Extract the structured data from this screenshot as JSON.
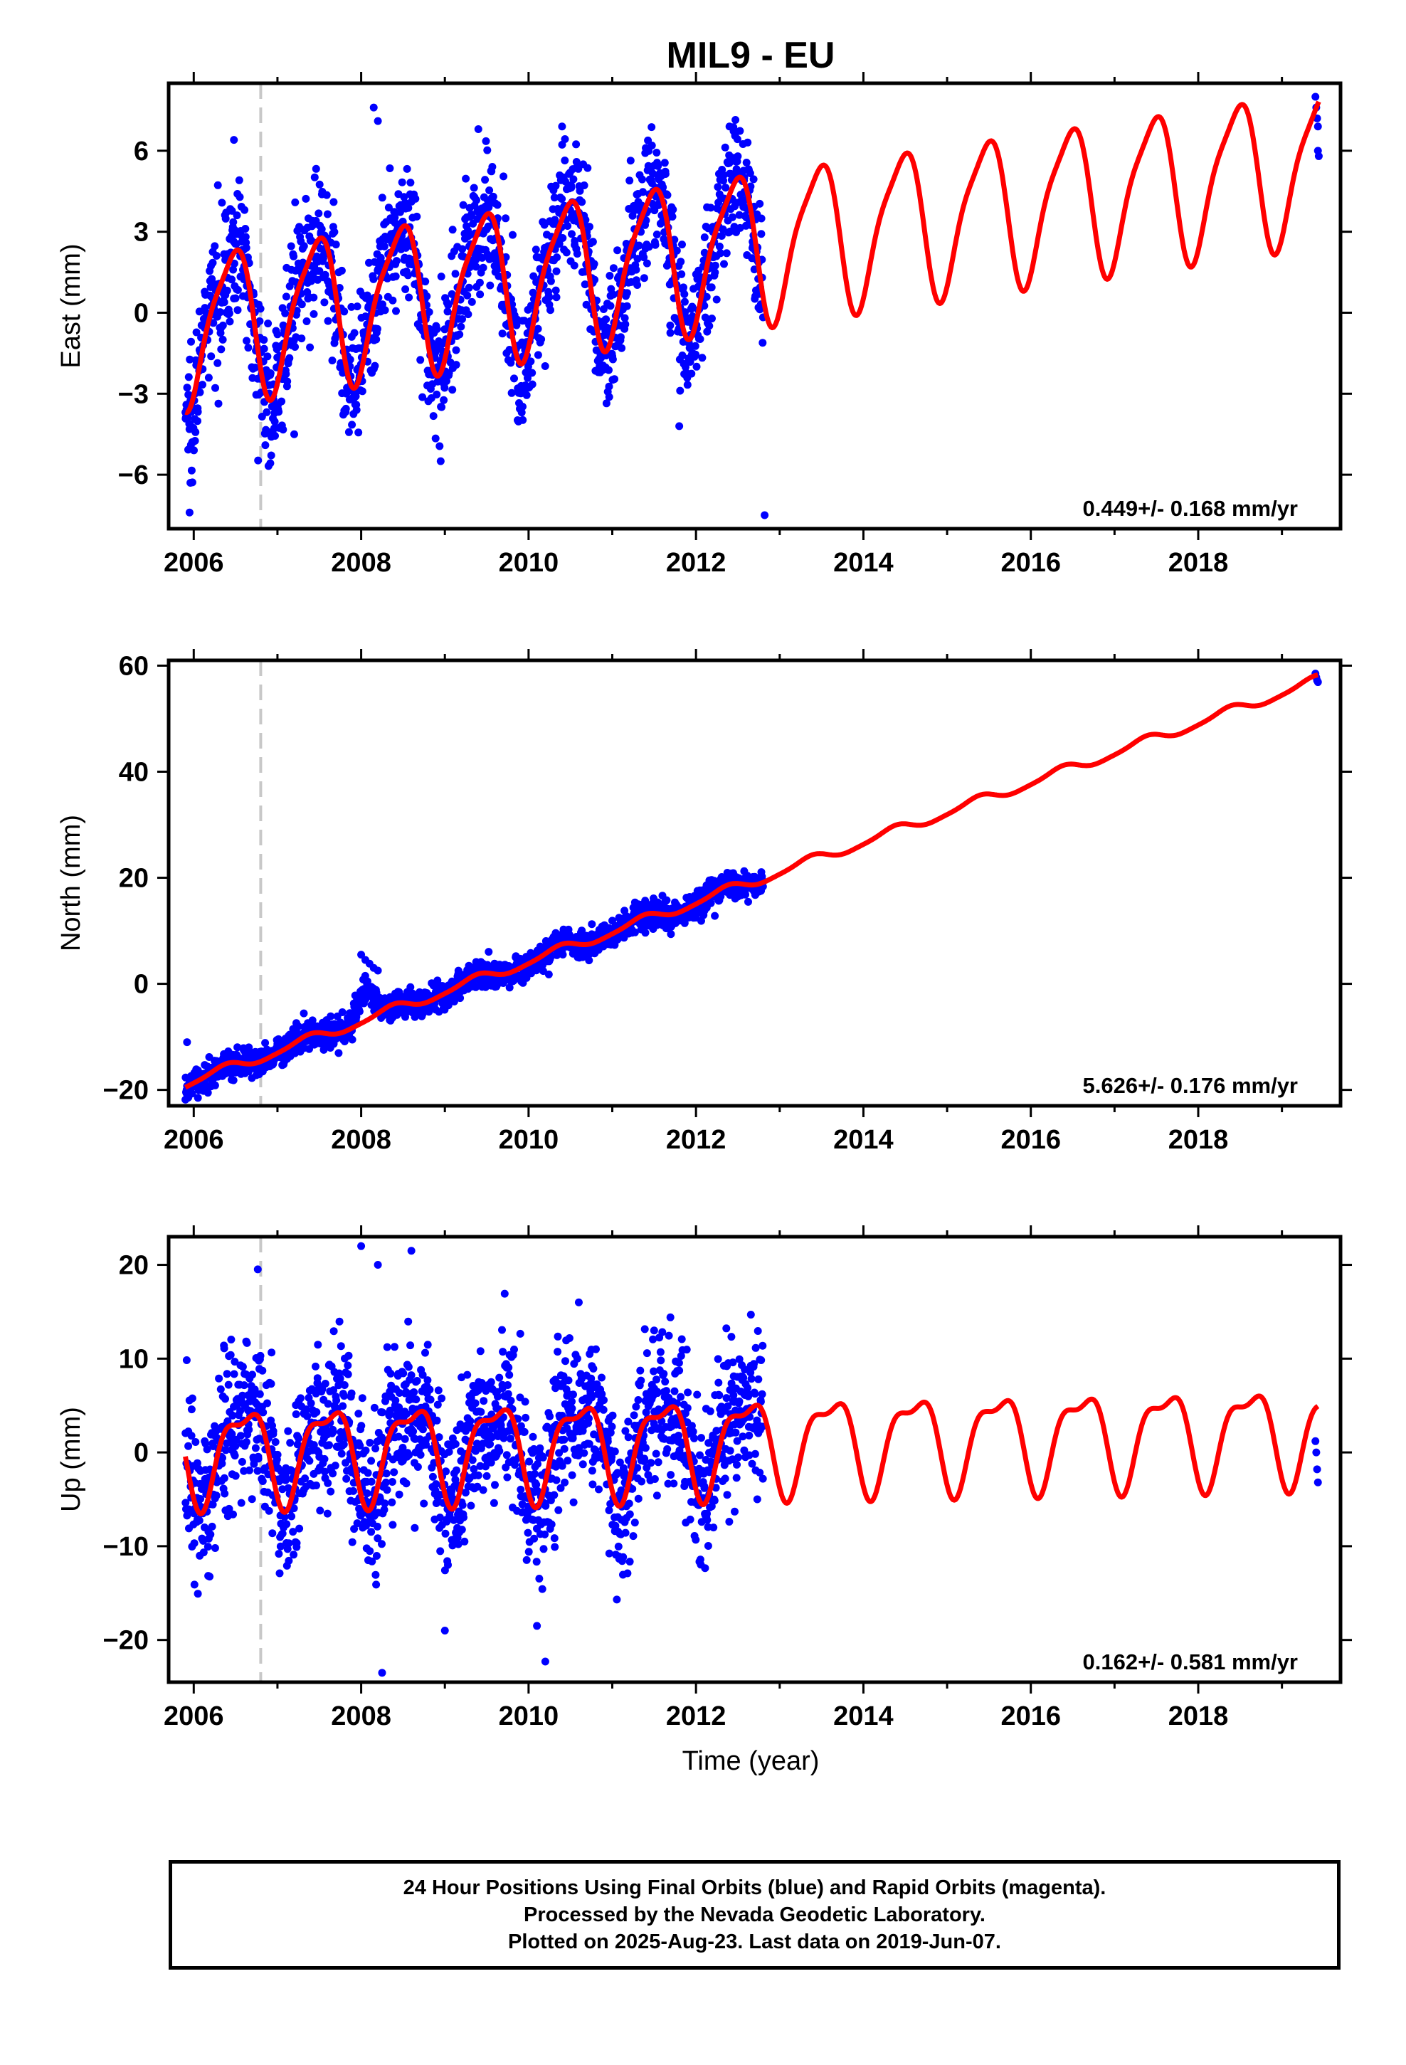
{
  "title": "MIL9 - EU",
  "xlabel": "Time (year)",
  "footer": {
    "line1": "24 Hour Positions Using Final Orbits (blue) and Rapid Orbits (magenta).",
    "line2": "Processed by the Nevada Geodetic Laboratory.",
    "line3": "Plotted on 2025-Aug-23. Last data on 2019-Jun-07."
  },
  "colors": {
    "data_points": "#0000ff",
    "model_line": "#ff0000",
    "event_line": "#c8c8c8",
    "frame": "#000000"
  },
  "chart_data": [
    {
      "type": "scatter",
      "component": "East",
      "ylabel": "East (mm)",
      "xlim": [
        2005.7,
        2019.7
      ],
      "ylim": [
        -8,
        8.5
      ],
      "xticks": [
        2006,
        2008,
        2010,
        2012,
        2014,
        2016,
        2018
      ],
      "yticks": [
        -6,
        -3,
        0,
        3,
        6
      ],
      "yticklabels": [
        "−6",
        "−3",
        "0",
        "3",
        "6"
      ],
      "event_line_x": 2006.8,
      "rate_label": "0.449+/- 0.168 mm/yr",
      "model": {
        "intercept": -0.5,
        "rate": 0.449,
        "ref_year": 2006.0,
        "amp_annual": 2.7,
        "phase_annual": 0.2,
        "amp_semi": 0.6,
        "phase_semi": 0.5
      },
      "data_span": [
        2005.9,
        2012.8
      ],
      "late_points": {
        "x": [
          2019.4,
          2019.41,
          2019.42,
          2019.43,
          2019.43,
          2019.44
        ],
        "y": [
          8.0,
          7.6,
          7.2,
          6.9,
          6.0,
          5.8
        ]
      },
      "noise_sd": 1.2,
      "outliers": {
        "x": [
          2005.95,
          2005.96,
          2006.48,
          2007.2,
          2008.15,
          2008.2,
          2008.95,
          2009.4,
          2010.4,
          2011.4,
          2011.8,
          2012.4,
          2012.82
        ],
        "y": [
          -7.4,
          -6.3,
          6.4,
          -4.5,
          7.6,
          7.1,
          -5.5,
          6.8,
          6.9,
          6.1,
          -4.2,
          6.9,
          -7.5
        ]
      }
    },
    {
      "type": "scatter",
      "component": "North",
      "ylabel": "North (mm)",
      "xlim": [
        2005.7,
        2019.7
      ],
      "ylim": [
        -23,
        61
      ],
      "xticks": [
        2006,
        2008,
        2010,
        2012,
        2014,
        2016,
        2018
      ],
      "yticks": [
        -20,
        0,
        20,
        40,
        60
      ],
      "yticklabels": [
        "−20",
        "0",
        "20",
        "40",
        "60"
      ],
      "event_line_x": 2006.8,
      "rate_label": "5.626+/- 0.176 mm/yr",
      "model": {
        "intercept": -18.3,
        "rate": 5.626,
        "ref_year": 2006.0,
        "amp_annual": 0.9,
        "phase_annual": 0.1,
        "amp_semi": 0.2,
        "phase_semi": 0.3
      },
      "data_span": [
        2005.9,
        2012.8
      ],
      "late_points": {
        "x": [
          2019.4,
          2019.41,
          2019.42,
          2019.43
        ],
        "y": [
          58.5,
          57.8,
          57.2,
          56.9
        ]
      },
      "noise_sd": 1.3,
      "outliers": {
        "x": [
          2005.92,
          2006.05,
          2008.0,
          2008.05,
          2008.1,
          2008.15,
          2008.2
        ],
        "y": [
          -11,
          -21.5,
          5.5,
          4.5,
          3.8,
          3.0,
          2.5
        ]
      }
    },
    {
      "type": "scatter",
      "component": "Up",
      "ylabel": "Up (mm)",
      "xlim": [
        2005.7,
        2019.7
      ],
      "ylim": [
        -24.5,
        23
      ],
      "xticks": [
        2006,
        2008,
        2010,
        2012,
        2014,
        2016,
        2018
      ],
      "yticks": [
        -20,
        -10,
        0,
        10,
        20
      ],
      "yticklabels": [
        "−20",
        "−10",
        "0",
        "10",
        "20"
      ],
      "event_line_x": 2006.8,
      "rate_label": "0.162+/- 0.581 mm/yr",
      "model": {
        "intercept": 0.0,
        "rate": 0.162,
        "ref_year": 2006.0,
        "amp_annual": 4.8,
        "phase_annual": 0.35,
        "amp_semi": 1.8,
        "phase_semi": 0.7
      },
      "data_span": [
        2005.9,
        2012.8
      ],
      "late_points": {
        "x": [
          2019.4,
          2019.41,
          2019.42,
          2019.43
        ],
        "y": [
          1.2,
          0.0,
          -1.8,
          -3.2
        ]
      },
      "noise_sd": 4.0,
      "outliers": {
        "x": [
          2008.0,
          2008.2,
          2008.6,
          2009.0,
          2010.2,
          2010.1,
          2008.25,
          2010.6,
          2011.5
        ],
        "y": [
          22.0,
          20.0,
          21.5,
          -19.0,
          -22.3,
          -18.5,
          -23.5,
          16.0,
          13.0
        ]
      }
    }
  ]
}
